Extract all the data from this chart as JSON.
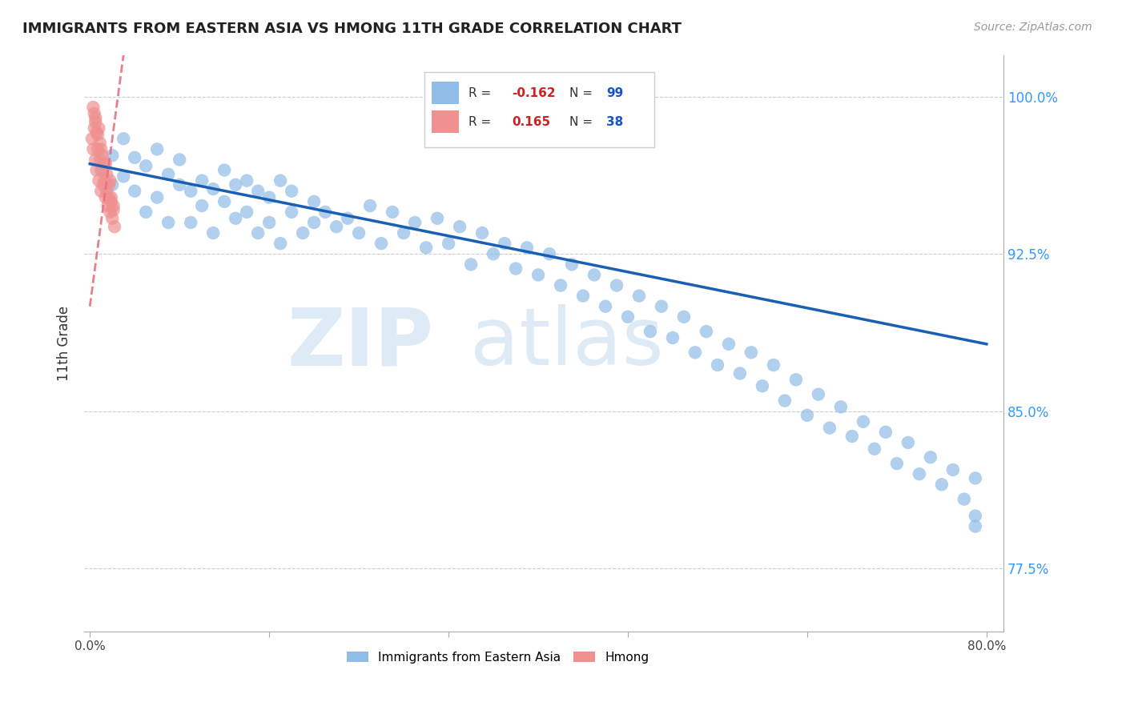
{
  "title": "IMMIGRANTS FROM EASTERN ASIA VS HMONG 11TH GRADE CORRELATION CHART",
  "source": "Source: ZipAtlas.com",
  "ylabel": "11th Grade",
  "y_tick_vals": [
    1.0,
    0.925,
    0.85,
    0.775
  ],
  "y_tick_labels": [
    "100.0%",
    "92.5%",
    "85.0%",
    "77.5%"
  ],
  "x_tick_vals": [
    0.0,
    0.16,
    0.32,
    0.48,
    0.64,
    0.8
  ],
  "xlim": [
    -0.005,
    0.815
  ],
  "ylim": [
    0.745,
    1.02
  ],
  "legend_r_blue": "-0.162",
  "legend_n_blue": "99",
  "legend_r_pink": "0.165",
  "legend_n_pink": "38",
  "blue_color": "#90bce8",
  "pink_color": "#f09090",
  "trend_blue_color": "#1a5fb4",
  "trend_pink_color": "#e87080",
  "blue_trend_x0": 0.0,
  "blue_trend_x1": 0.8,
  "blue_trend_y0": 0.968,
  "blue_trend_y1": 0.882,
  "pink_trend_x0": 0.0,
  "pink_trend_x1": 0.03,
  "pink_trend_y0": 0.9,
  "pink_trend_y1": 1.02,
  "blue_dots_x": [
    0.01,
    0.02,
    0.02,
    0.03,
    0.03,
    0.04,
    0.04,
    0.05,
    0.05,
    0.06,
    0.06,
    0.07,
    0.07,
    0.08,
    0.08,
    0.09,
    0.09,
    0.1,
    0.1,
    0.11,
    0.11,
    0.12,
    0.12,
    0.13,
    0.13,
    0.14,
    0.14,
    0.15,
    0.15,
    0.16,
    0.16,
    0.17,
    0.17,
    0.18,
    0.18,
    0.19,
    0.2,
    0.2,
    0.21,
    0.22,
    0.23,
    0.24,
    0.25,
    0.26,
    0.27,
    0.28,
    0.29,
    0.3,
    0.31,
    0.32,
    0.33,
    0.34,
    0.35,
    0.36,
    0.37,
    0.38,
    0.39,
    0.4,
    0.41,
    0.42,
    0.43,
    0.44,
    0.45,
    0.46,
    0.47,
    0.48,
    0.49,
    0.5,
    0.51,
    0.52,
    0.53,
    0.54,
    0.55,
    0.56,
    0.57,
    0.58,
    0.59,
    0.6,
    0.61,
    0.62,
    0.63,
    0.64,
    0.65,
    0.66,
    0.67,
    0.68,
    0.69,
    0.7,
    0.71,
    0.72,
    0.73,
    0.74,
    0.75,
    0.76,
    0.77,
    0.78,
    0.79,
    0.79,
    0.79
  ],
  "blue_dots_y": [
    0.965,
    0.972,
    0.958,
    0.962,
    0.98,
    0.971,
    0.955,
    0.967,
    0.945,
    0.975,
    0.952,
    0.963,
    0.94,
    0.958,
    0.97,
    0.955,
    0.94,
    0.96,
    0.948,
    0.956,
    0.935,
    0.965,
    0.95,
    0.958,
    0.942,
    0.96,
    0.945,
    0.955,
    0.935,
    0.952,
    0.94,
    0.96,
    0.93,
    0.945,
    0.955,
    0.935,
    0.95,
    0.94,
    0.945,
    0.938,
    0.942,
    0.935,
    0.948,
    0.93,
    0.945,
    0.935,
    0.94,
    0.928,
    0.942,
    0.93,
    0.938,
    0.92,
    0.935,
    0.925,
    0.93,
    0.918,
    0.928,
    0.915,
    0.925,
    0.91,
    0.92,
    0.905,
    0.915,
    0.9,
    0.91,
    0.895,
    0.905,
    0.888,
    0.9,
    0.885,
    0.895,
    0.878,
    0.888,
    0.872,
    0.882,
    0.868,
    0.878,
    0.862,
    0.872,
    0.855,
    0.865,
    0.848,
    0.858,
    0.842,
    0.852,
    0.838,
    0.845,
    0.832,
    0.84,
    0.825,
    0.835,
    0.82,
    0.828,
    0.815,
    0.822,
    0.808,
    0.818,
    0.8,
    0.795
  ],
  "pink_dots_x": [
    0.002,
    0.003,
    0.004,
    0.005,
    0.005,
    0.006,
    0.007,
    0.008,
    0.009,
    0.01,
    0.011,
    0.012,
    0.013,
    0.014,
    0.015,
    0.016,
    0.017,
    0.018,
    0.019,
    0.02,
    0.021,
    0.022,
    0.003,
    0.005,
    0.007,
    0.009,
    0.011,
    0.013,
    0.015,
    0.017,
    0.019,
    0.021,
    0.006,
    0.01,
    0.014,
    0.018,
    0.004,
    0.008
  ],
  "pink_dots_y": [
    0.98,
    0.975,
    0.985,
    0.97,
    0.99,
    0.965,
    0.975,
    0.96,
    0.97,
    0.955,
    0.965,
    0.958,
    0.96,
    0.952,
    0.955,
    0.948,
    0.952,
    0.945,
    0.95,
    0.942,
    0.948,
    0.938,
    0.995,
    0.988,
    0.982,
    0.978,
    0.972,
    0.968,
    0.963,
    0.958,
    0.952,
    0.946,
    0.983,
    0.975,
    0.968,
    0.96,
    0.992,
    0.985
  ]
}
